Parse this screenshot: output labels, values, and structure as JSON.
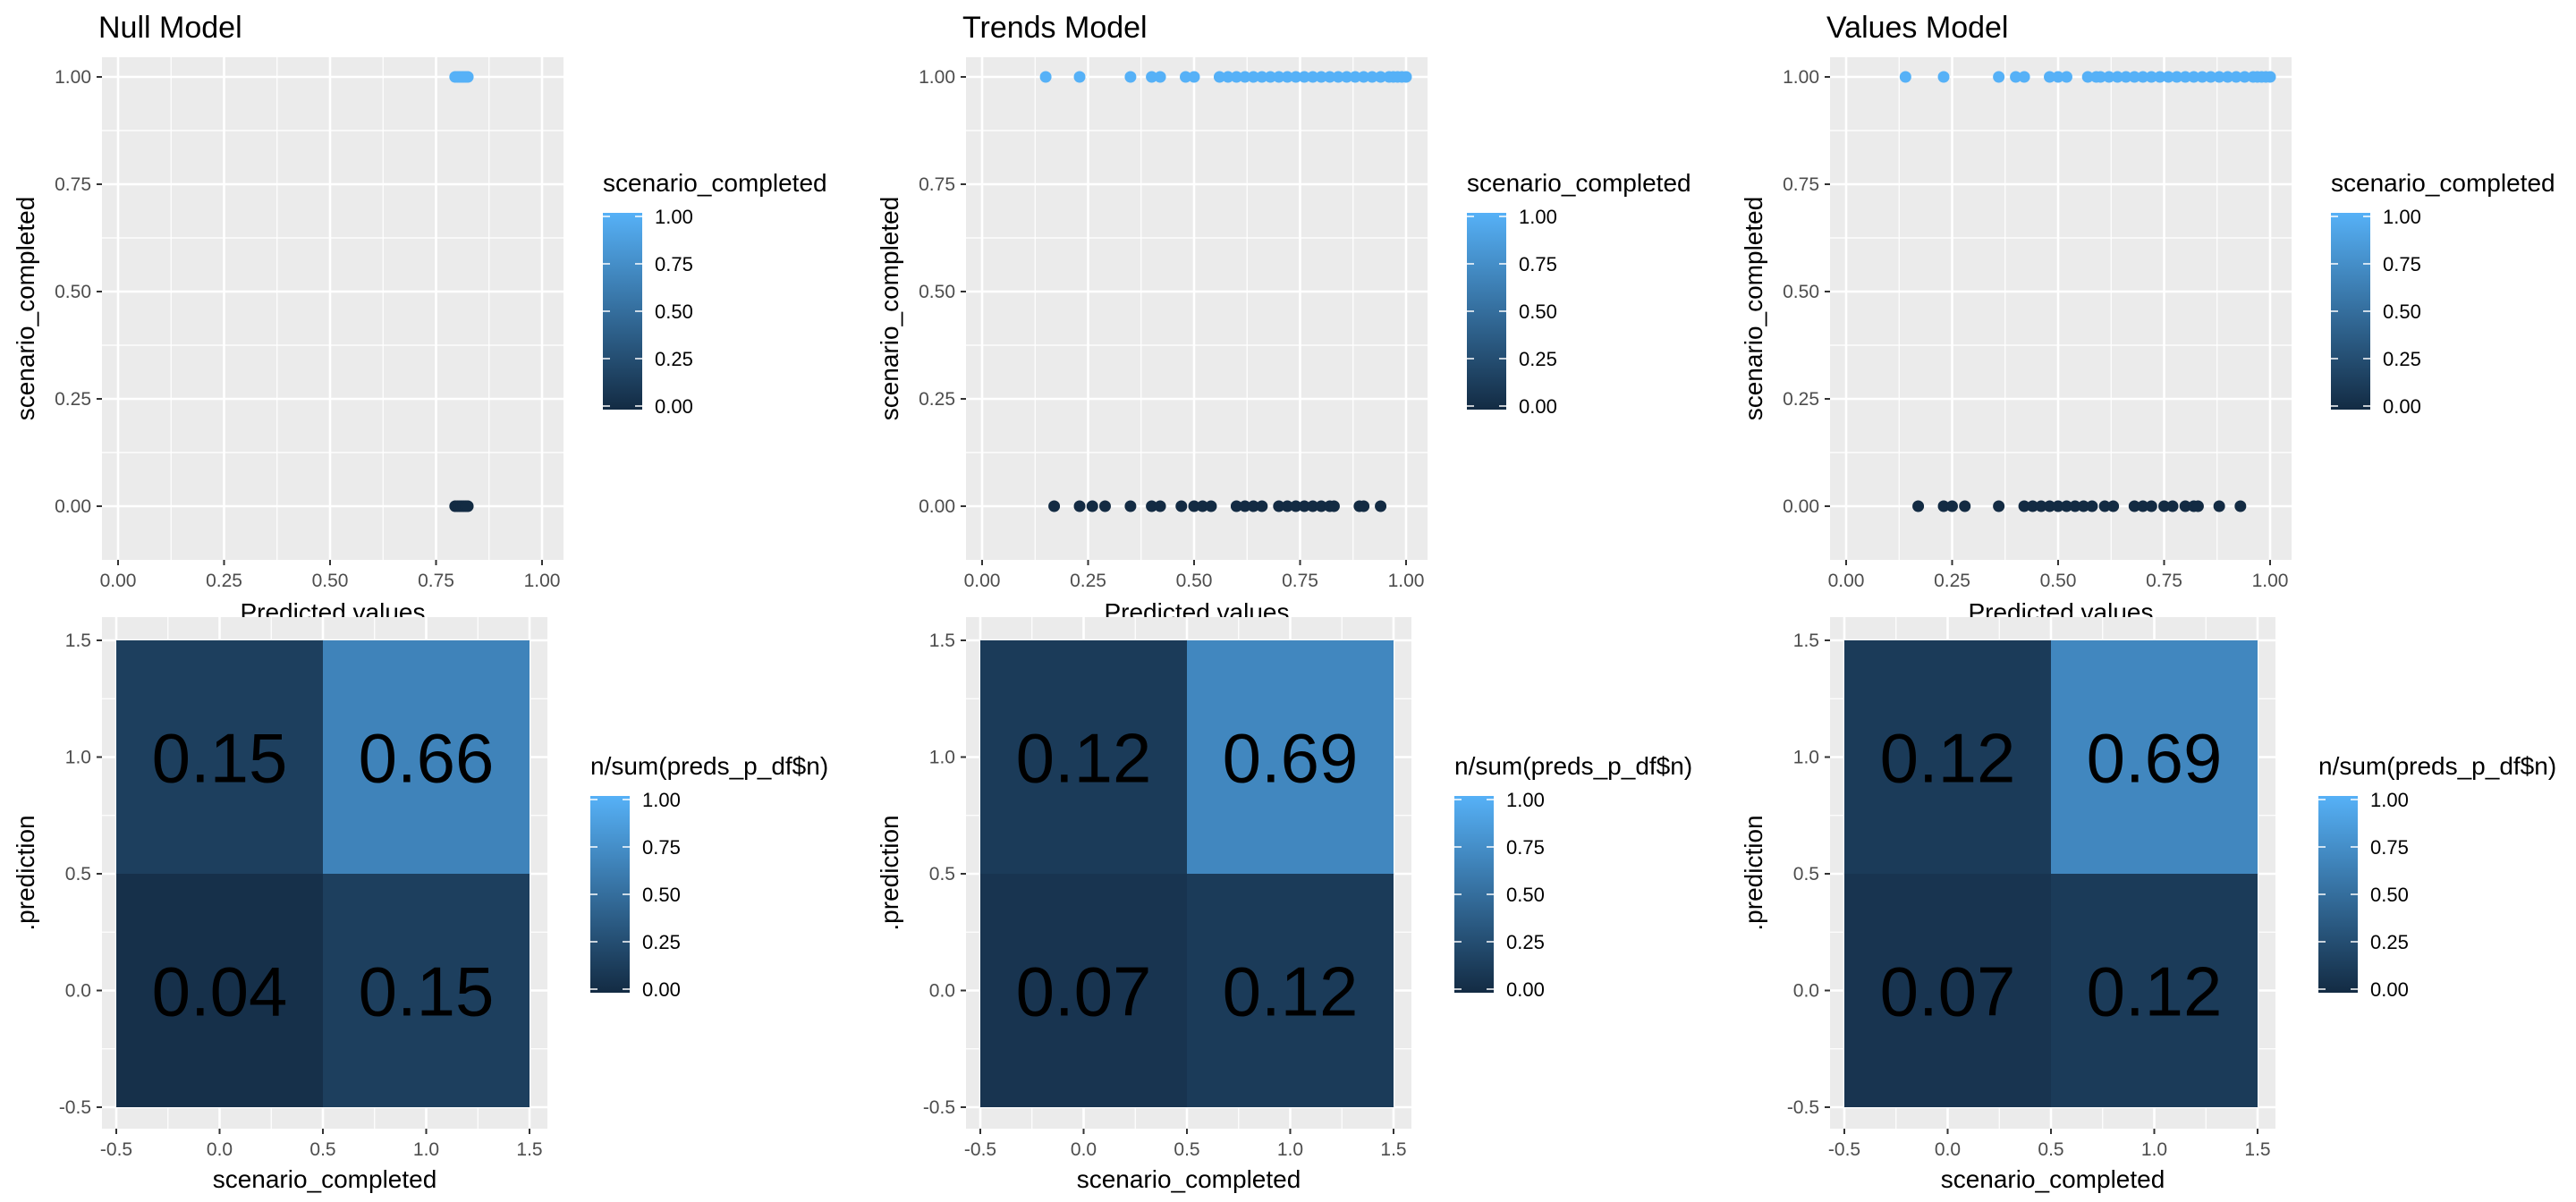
{
  "scatter_ticks": [
    "0.00",
    "0.25",
    "0.50",
    "0.75",
    "1.00"
  ],
  "heatmap_ticks": [
    "-0.5",
    "0.0",
    "0.5",
    "1.0",
    "1.5"
  ],
  "colorscale": {
    "low": "#132b43",
    "high": "#56b1f7"
  },
  "scatter_legend": {
    "title": "scenario_completed",
    "ticks": [
      "1.00",
      "0.75",
      "0.50",
      "0.25",
      "0.00"
    ]
  },
  "heatmap_legend": {
    "title": "n/sum(preds_p_df$n)",
    "ticks": [
      "1.00",
      "0.75",
      "0.50",
      "0.25",
      "0.00"
    ]
  },
  "chart_data": [
    {
      "type": "scatter",
      "title": "Null Model",
      "xlabel": "Predicted values",
      "ylabel": "scenario_completed",
      "xlim": [
        0,
        1
      ],
      "ylim": [
        0,
        1
      ],
      "series": [
        {
          "y": 1,
          "x": [
            0.795,
            0.8,
            0.805,
            0.81,
            0.815,
            0.82,
            0.825
          ]
        },
        {
          "y": 0,
          "x": [
            0.795,
            0.8,
            0.805,
            0.81,
            0.815,
            0.82,
            0.825
          ]
        }
      ]
    },
    {
      "type": "scatter",
      "title": "Trends Model",
      "xlabel": "Predicted values",
      "ylabel": "scenario_completed",
      "xlim": [
        0,
        1
      ],
      "ylim": [
        0,
        1
      ],
      "series": [
        {
          "y": 1,
          "x": [
            0.15,
            0.23,
            0.35,
            0.4,
            0.42,
            0.48,
            0.5,
            0.56,
            0.58,
            0.6,
            0.62,
            0.64,
            0.66,
            0.68,
            0.7,
            0.72,
            0.74,
            0.76,
            0.78,
            0.8,
            0.82,
            0.84,
            0.86,
            0.88,
            0.9,
            0.92,
            0.94,
            0.96,
            0.97,
            0.98,
            0.99,
            1.0
          ]
        },
        {
          "y": 0,
          "x": [
            0.17,
            0.23,
            0.26,
            0.29,
            0.35,
            0.4,
            0.42,
            0.47,
            0.5,
            0.52,
            0.54,
            0.6,
            0.62,
            0.64,
            0.66,
            0.7,
            0.72,
            0.74,
            0.76,
            0.78,
            0.8,
            0.82,
            0.83,
            0.89,
            0.9,
            0.94
          ]
        }
      ]
    },
    {
      "type": "scatter",
      "title": "Values Model",
      "xlabel": "Predicted values",
      "ylabel": "scenario_completed",
      "xlim": [
        0,
        1
      ],
      "ylim": [
        0,
        1
      ],
      "series": [
        {
          "y": 1,
          "x": [
            0.14,
            0.23,
            0.36,
            0.4,
            0.42,
            0.48,
            0.5,
            0.52,
            0.57,
            0.59,
            0.6,
            0.62,
            0.64,
            0.66,
            0.68,
            0.7,
            0.72,
            0.74,
            0.76,
            0.78,
            0.8,
            0.82,
            0.84,
            0.86,
            0.88,
            0.9,
            0.92,
            0.94,
            0.96,
            0.97,
            0.98,
            0.99,
            1.0
          ]
        },
        {
          "y": 0,
          "x": [
            0.17,
            0.23,
            0.25,
            0.28,
            0.36,
            0.42,
            0.44,
            0.46,
            0.48,
            0.5,
            0.52,
            0.54,
            0.56,
            0.58,
            0.61,
            0.63,
            0.68,
            0.7,
            0.72,
            0.75,
            0.77,
            0.8,
            0.82,
            0.83,
            0.88,
            0.93
          ]
        }
      ]
    },
    {
      "type": "heatmap",
      "xlabel": "scenario_completed",
      "ylabel": ".prediction",
      "xlim": [
        -0.5,
        1.5
      ],
      "ylim": [
        -0.5,
        1.5
      ],
      "cells": [
        {
          "x": 0,
          "y": 1,
          "value": 0.15,
          "label": "0.15"
        },
        {
          "x": 1,
          "y": 1,
          "value": 0.66,
          "label": "0.66"
        },
        {
          "x": 0,
          "y": 0,
          "value": 0.04,
          "label": "0.04"
        },
        {
          "x": 1,
          "y": 0,
          "value": 0.15,
          "label": "0.15"
        }
      ]
    },
    {
      "type": "heatmap",
      "xlabel": "scenario_completed",
      "ylabel": ".prediction",
      "xlim": [
        -0.5,
        1.5
      ],
      "ylim": [
        -0.5,
        1.5
      ],
      "cells": [
        {
          "x": 0,
          "y": 1,
          "value": 0.12,
          "label": "0.12"
        },
        {
          "x": 1,
          "y": 1,
          "value": 0.69,
          "label": "0.69"
        },
        {
          "x": 0,
          "y": 0,
          "value": 0.07,
          "label": "0.07"
        },
        {
          "x": 1,
          "y": 0,
          "value": 0.12,
          "label": "0.12"
        }
      ]
    },
    {
      "type": "heatmap",
      "xlabel": "scenario_completed",
      "ylabel": ".prediction",
      "xlim": [
        -0.5,
        1.5
      ],
      "ylim": [
        -0.5,
        1.5
      ],
      "cells": [
        {
          "x": 0,
          "y": 1,
          "value": 0.12,
          "label": "0.12"
        },
        {
          "x": 1,
          "y": 1,
          "value": 0.69,
          "label": "0.69"
        },
        {
          "x": 0,
          "y": 0,
          "value": 0.07,
          "label": "0.07"
        },
        {
          "x": 1,
          "y": 0,
          "value": 0.12,
          "label": "0.12"
        }
      ]
    }
  ]
}
